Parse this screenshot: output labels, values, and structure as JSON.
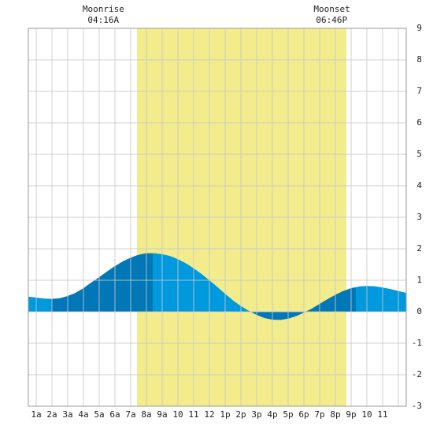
{
  "chart_data": {
    "type": "area",
    "title": "",
    "xlabel": "",
    "ylabel": "",
    "xlim": [
      -0.5,
      23.5
    ],
    "ylim": [
      -3,
      9
    ],
    "grid": true,
    "y_ticks": [
      "-3",
      "-2",
      "-1",
      "0",
      "1",
      "2",
      "3",
      "4",
      "5",
      "6",
      "7",
      "8",
      "9"
    ],
    "x_tick_labels": [
      "1a",
      "2a",
      "3a",
      "4a",
      "5a",
      "6a",
      "7a",
      "8a",
      "9a",
      "10",
      "11",
      "12",
      "1p",
      "2p",
      "3p",
      "4p",
      "5p",
      "6p",
      "7p",
      "8p",
      "9p",
      "10",
      "11"
    ],
    "annotations": {
      "moonrise": {
        "label": "Moonrise",
        "time": "04:16A",
        "hour": 4.27
      },
      "moonset": {
        "label": "Moonset",
        "time": "06:46P",
        "hour": 18.77
      }
    },
    "daylight": {
      "start_hour": 6.4,
      "end_hour": 19.7,
      "color": "#f2ec8c"
    },
    "series": [
      {
        "x": [
          -0.5,
          0,
          0.5,
          1,
          1.5,
          2,
          2.5,
          3,
          3.5,
          4,
          4.5,
          5,
          5.5,
          6,
          6.5,
          7,
          7.5,
          8,
          8.5,
          9,
          9.5,
          10,
          10.5,
          11,
          11.5,
          12,
          12.5,
          13,
          13.5,
          14,
          14.5,
          15,
          15.5,
          16,
          16.5,
          17,
          17.5,
          18,
          18.5,
          19,
          19.5,
          20,
          20.5,
          21,
          21.5,
          22,
          22.5,
          23,
          23.5
        ],
        "y": [
          0.48,
          0.45,
          0.42,
          0.41,
          0.43,
          0.5,
          0.6,
          0.75,
          0.93,
          1.1,
          1.28,
          1.45,
          1.6,
          1.72,
          1.81,
          1.86,
          1.86,
          1.83,
          1.77,
          1.67,
          1.54,
          1.38,
          1.2,
          1.0,
          0.79,
          0.57,
          0.36,
          0.18,
          0.03,
          -0.1,
          -0.2,
          -0.25,
          -0.26,
          -0.22,
          -0.14,
          -0.03,
          0.1,
          0.25,
          0.4,
          0.54,
          0.66,
          0.75,
          0.8,
          0.82,
          0.81,
          0.77,
          0.72,
          0.66,
          0.6
        ]
      }
    ],
    "segments": [
      {
        "from": -0.5,
        "to": 1.0,
        "shade": "light"
      },
      {
        "from": 1.0,
        "to": 7.4,
        "shade": "dark"
      },
      {
        "from": 7.4,
        "to": 13.5,
        "shade": "light"
      },
      {
        "from": 13.5,
        "to": 16.0,
        "shade": "dark"
      },
      {
        "from": 16.0,
        "to": 20.3,
        "shade": "dark"
      },
      {
        "from": 20.3,
        "to": 23.5,
        "shade": "light"
      }
    ],
    "colors": {
      "light": "#0099dd",
      "dark": "#0077b6",
      "grid": "#c8c8c8",
      "background": "#ffffff",
      "frame": "#999999"
    }
  }
}
